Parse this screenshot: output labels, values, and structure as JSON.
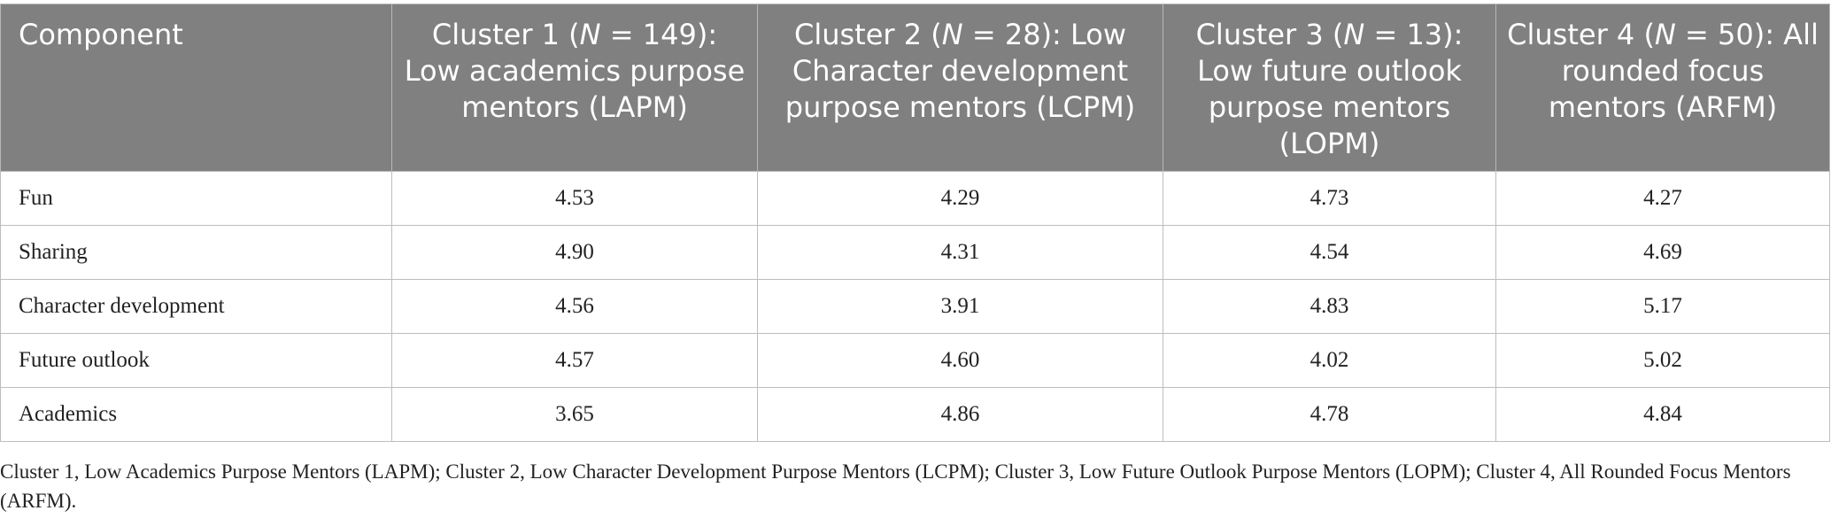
{
  "table": {
    "headers": [
      {
        "text": "Component"
      },
      {
        "prefix": "Cluster 1 (",
        "n_symbol": "N",
        "suffix": " = 149): Low academics purpose mentors (LAPM)"
      },
      {
        "prefix": "Cluster 2 (",
        "n_symbol": "N",
        "suffix": " = 28): Low Character development purpose mentors (LCPM)"
      },
      {
        "prefix": "Cluster 3 (",
        "n_symbol": "N",
        "suffix": " = 13): Low future outlook purpose mentors (LOPM)"
      },
      {
        "prefix": "Cluster 4 (",
        "n_symbol": "N",
        "suffix": " = 50): All rounded focus mentors (ARFM)"
      }
    ],
    "rows": [
      {
        "label": "Fun",
        "values": [
          "4.53",
          "4.29",
          "4.73",
          "4.27"
        ]
      },
      {
        "label": "Sharing",
        "values": [
          "4.90",
          "4.31",
          "4.54",
          "4.69"
        ]
      },
      {
        "label": "Character development",
        "values": [
          "4.56",
          "3.91",
          "4.83",
          "5.17"
        ]
      },
      {
        "label": "Future outlook",
        "values": [
          "4.57",
          "4.60",
          "4.02",
          "5.02"
        ]
      },
      {
        "label": "Academics",
        "values": [
          "3.65",
          "4.86",
          "4.78",
          "4.84"
        ]
      }
    ]
  },
  "footnote": "Cluster 1, Low Academics Purpose Mentors (LAPM); Cluster 2, Low Character Development Purpose Mentors (LCPM); Cluster 3, Low Future Outlook Purpose Mentors (LOPM); Cluster 4, All Rounded Focus Mentors (ARFM).",
  "colors": {
    "header_background": "#808080",
    "header_text": "#ffffff",
    "border": "#bdbdbd",
    "body_text": "#222222"
  }
}
